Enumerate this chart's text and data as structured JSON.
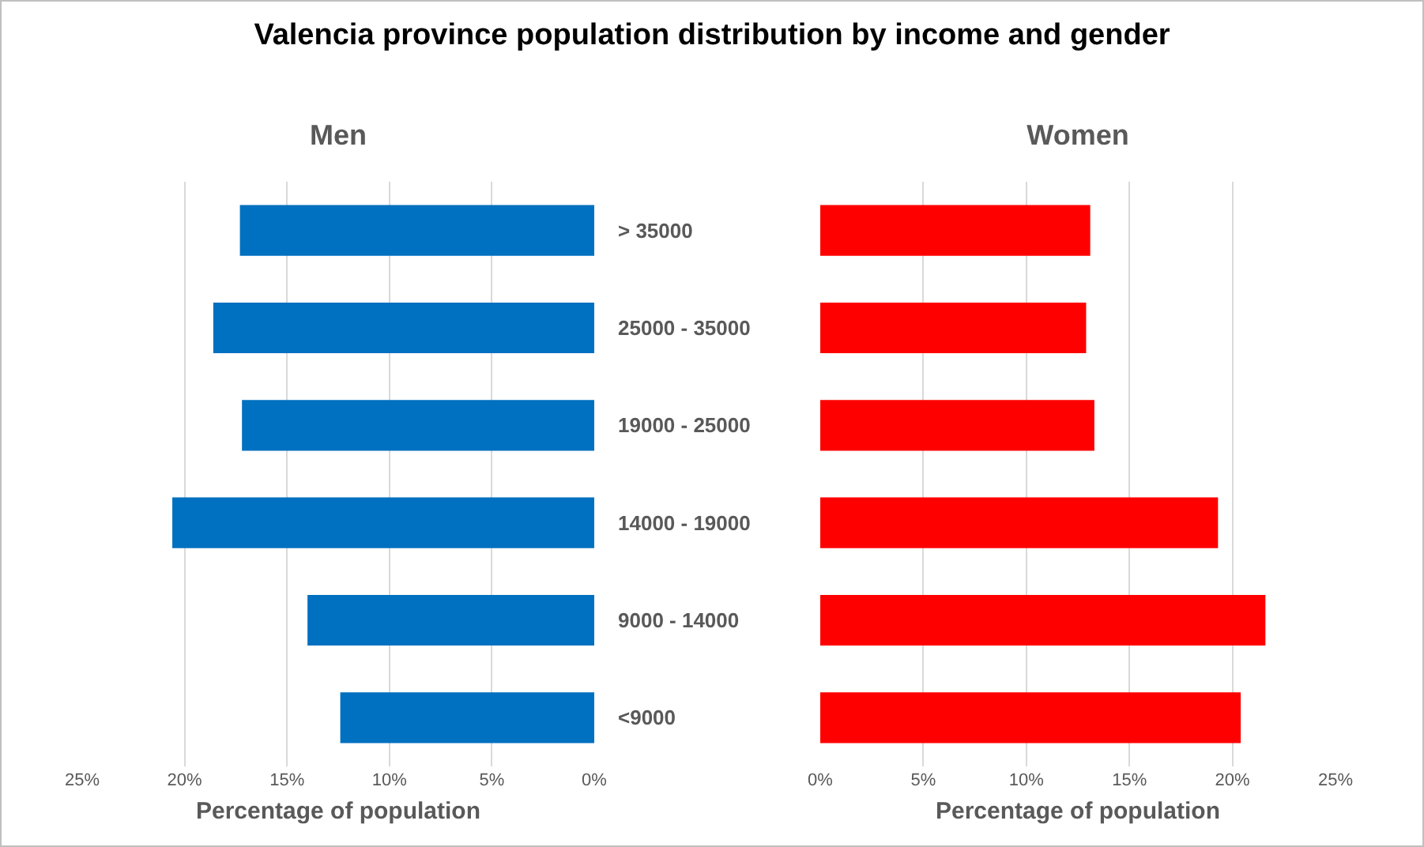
{
  "chart_data": [
    {
      "type": "bar",
      "orientation": "horizontal",
      "title": "Valencia province population distribution by income and gender",
      "subtitle": "Men",
      "xlabel": "Percentage of population",
      "categories": [
        "> 35000",
        "25000 - 35000",
        "19000 - 25000",
        "14000 - 19000",
        "9000 - 14000",
        "<9000"
      ],
      "series": [
        {
          "color": "#0070c0",
          "values": [
            17.3,
            18.6,
            17.2,
            20.6,
            14.0,
            12.4
          ]
        }
      ],
      "xlim": [
        25,
        0
      ],
      "xticks": [
        {
          "value": 25,
          "label": "25%"
        },
        {
          "value": 20,
          "label": "20%"
        },
        {
          "value": 15,
          "label": "15%"
        },
        {
          "value": 10,
          "label": "10%"
        },
        {
          "value": 5,
          "label": "5%"
        },
        {
          "value": 0,
          "label": "0%"
        }
      ],
      "grid": "x"
    },
    {
      "type": "bar",
      "orientation": "horizontal",
      "subtitle": "Women",
      "xlabel": "Percentage of population",
      "categories": [
        null,
        null,
        null,
        null,
        null,
        null
      ],
      "series": [
        {
          "color": "#ff0000",
          "values": [
            13.1,
            12.9,
            13.3,
            19.3,
            21.6,
            20.4
          ]
        }
      ],
      "xlim": [
        0,
        25
      ],
      "xticks": [
        {
          "value": 0,
          "label": "0%"
        },
        {
          "value": 5,
          "label": "5%"
        },
        {
          "value": 10,
          "label": "10%"
        },
        {
          "value": 15,
          "label": "15%"
        },
        {
          "value": 20,
          "label": "20%"
        },
        {
          "value": 25,
          "label": "25%"
        }
      ],
      "grid": "x",
      "tick_labels": "x"
    }
  ]
}
